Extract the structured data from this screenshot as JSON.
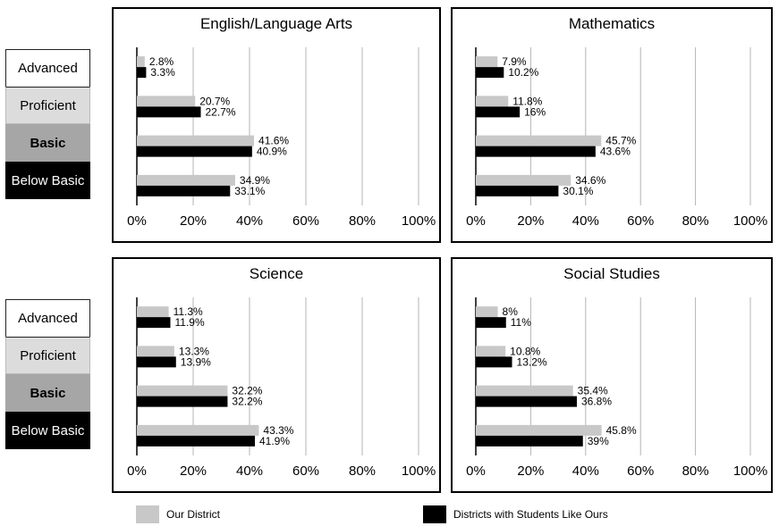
{
  "levels": {
    "advanced": "Advanced",
    "proficient": "Proficient",
    "basic": "Basic",
    "below_basic": "Below Basic"
  },
  "legend": {
    "our_district": "Our District",
    "similar": "Districts with Students Like Ours"
  },
  "colors": {
    "our_district": "#c8c8c8",
    "similar": "#000000",
    "gridline": "#b4b4b4",
    "advanced_bg": "#ffffff",
    "proficient_bg": "#dcdcdc",
    "basic_bg": "#a6a6a6",
    "below_basic_bg": "#000000"
  },
  "chart_data": [
    {
      "type": "bar",
      "orientation": "horizontal",
      "title": "English/Language Arts",
      "categories": [
        "Advanced",
        "Proficient",
        "Basic",
        "Below Basic"
      ],
      "series": [
        {
          "name": "Our District",
          "values": [
            2.8,
            20.7,
            41.6,
            34.9
          ],
          "labels": [
            "2.8%",
            "20.7%",
            "41.6%",
            "34.9%"
          ]
        },
        {
          "name": "Districts with Students Like Ours",
          "values": [
            3.3,
            22.7,
            40.9,
            33.1
          ],
          "labels": [
            "3.3%",
            "22.7%",
            "40.9%",
            "33.1%"
          ]
        }
      ],
      "xlim": [
        0,
        100
      ],
      "xticks": [
        "0%",
        "20%",
        "40%",
        "60%",
        "80%",
        "100%"
      ],
      "grid": true
    },
    {
      "type": "bar",
      "orientation": "horizontal",
      "title": "Mathematics",
      "categories": [
        "Advanced",
        "Proficient",
        "Basic",
        "Below Basic"
      ],
      "series": [
        {
          "name": "Our District",
          "values": [
            7.9,
            11.8,
            45.7,
            34.6
          ],
          "labels": [
            "7.9%",
            "11.8%",
            "45.7%",
            "34.6%"
          ]
        },
        {
          "name": "Districts with Students Like Ours",
          "values": [
            10.2,
            16,
            43.6,
            30.1
          ],
          "labels": [
            "10.2%",
            "16%",
            "43.6%",
            "30.1%"
          ]
        }
      ],
      "xlim": [
        0,
        100
      ],
      "xticks": [
        "0%",
        "20%",
        "40%",
        "60%",
        "80%",
        "100%"
      ],
      "grid": true
    },
    {
      "type": "bar",
      "orientation": "horizontal",
      "title": "Science",
      "categories": [
        "Advanced",
        "Proficient",
        "Basic",
        "Below Basic"
      ],
      "series": [
        {
          "name": "Our District",
          "values": [
            11.3,
            13.3,
            32.2,
            43.3
          ],
          "labels": [
            "11.3%",
            "13.3%",
            "32.2%",
            "43.3%"
          ]
        },
        {
          "name": "Districts with Students Like Ours",
          "values": [
            11.9,
            13.9,
            32.2,
            41.9
          ],
          "labels": [
            "11.9%",
            "13.9%",
            "32.2%",
            "41.9%"
          ]
        }
      ],
      "xlim": [
        0,
        100
      ],
      "xticks": [
        "0%",
        "20%",
        "40%",
        "60%",
        "80%",
        "100%"
      ],
      "grid": true
    },
    {
      "type": "bar",
      "orientation": "horizontal",
      "title": "Social Studies",
      "categories": [
        "Advanced",
        "Proficient",
        "Basic",
        "Below Basic"
      ],
      "series": [
        {
          "name": "Our District",
          "values": [
            8,
            10.8,
            35.4,
            45.8
          ],
          "labels": [
            "8%",
            "10.8%",
            "35.4%",
            "45.8%"
          ]
        },
        {
          "name": "Districts with Students Like Ours",
          "values": [
            11,
            13.2,
            36.8,
            39
          ],
          "labels": [
            "11%",
            "13.2%",
            "36.8%",
            "39%"
          ]
        }
      ],
      "xlim": [
        0,
        100
      ],
      "xticks": [
        "0%",
        "20%",
        "40%",
        "60%",
        "80%",
        "100%"
      ],
      "grid": true
    }
  ]
}
